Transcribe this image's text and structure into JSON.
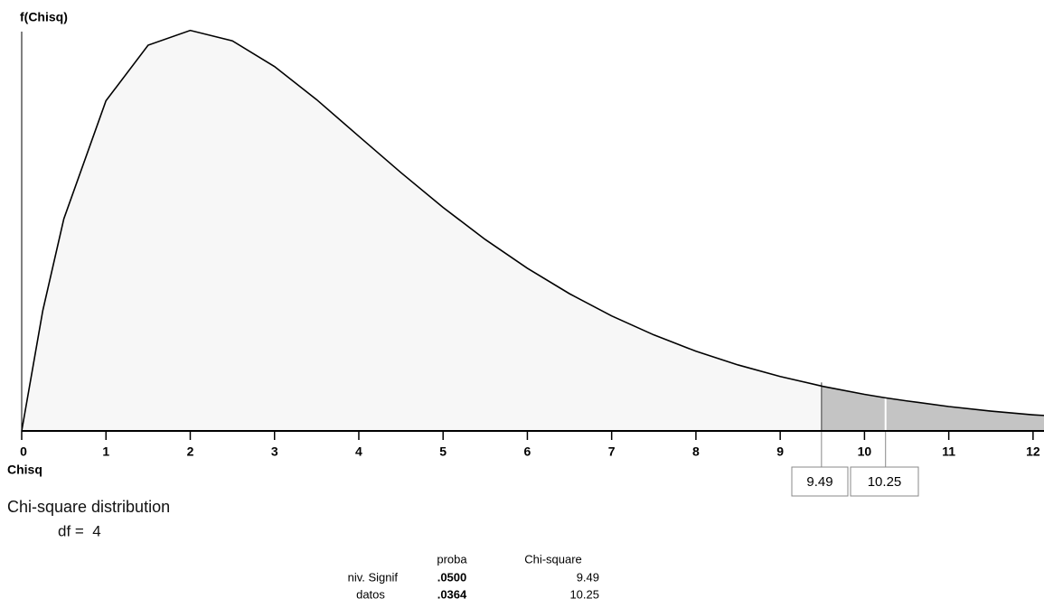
{
  "chart_data": {
    "type": "line",
    "y_label": "f(Chisq)",
    "x_label": "Chisq",
    "annotations": [
      "Chi-square distribution",
      "df =  4"
    ],
    "x": [
      0,
      0.25,
      0.5,
      1,
      1.5,
      2,
      2.5,
      3,
      3.5,
      4,
      4.5,
      5,
      5.5,
      6,
      6.5,
      7,
      7.5,
      8,
      8.5,
      9,
      9.49,
      9.5,
      10,
      10.25,
      10.5,
      11,
      11.5,
      12,
      12.13
    ],
    "values": [
      0,
      0.0552,
      0.0974,
      0.1516,
      0.1771,
      0.1839,
      0.1791,
      0.1673,
      0.1521,
      0.1353,
      0.1186,
      0.1026,
      0.0879,
      0.0747,
      0.063,
      0.0528,
      0.0441,
      0.0366,
      0.0303,
      0.025,
      0.0206,
      0.0205,
      0.0168,
      0.0152,
      0.0138,
      0.0112,
      0.0091,
      0.0074,
      0.0071
    ],
    "color": "#000000",
    "critical_values": [
      9.49,
      10.25
    ],
    "xlim": [
      0,
      12.13
    ],
    "ylim": [
      0,
      0.185
    ],
    "xticks": [
      0,
      1,
      2,
      3,
      4,
      5,
      6,
      7,
      8,
      9,
      10,
      11,
      12
    ]
  },
  "table": {
    "columns": [
      "proba",
      "Chi-square"
    ],
    "rows": [
      {
        "name": "niv. Signif",
        "cells": [
          ".0500",
          "9.49"
        ]
      },
      {
        "name": "datos",
        "cells": [
          ".0364",
          "10.25"
        ]
      }
    ]
  }
}
